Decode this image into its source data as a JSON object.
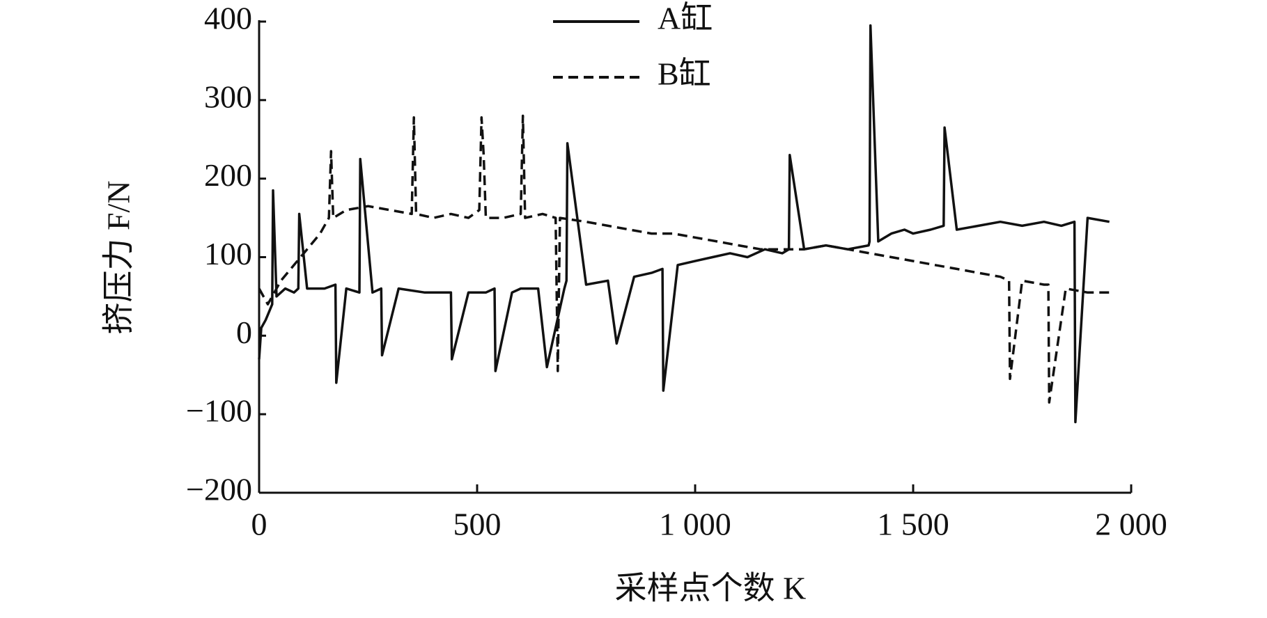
{
  "chart_data": {
    "type": "line",
    "xlabel": "采样点个数 K",
    "ylabel": "挤压力 F/N",
    "xlim": [
      0,
      2000
    ],
    "ylim": [
      -200,
      400
    ],
    "xticks": [
      0,
      500,
      {
        "value": 1000,
        "label": "1 000"
      },
      {
        "value": 1500,
        "label": "1 500"
      },
      {
        "value": 2000,
        "label": "2 000"
      }
    ],
    "yticks": [
      {
        "value": -200,
        "label": "−200"
      },
      {
        "value": -100,
        "label": "−100"
      },
      0,
      100,
      200,
      300,
      400
    ],
    "series": [
      {
        "name": "A缸",
        "color": "#111111",
        "dash": "solid",
        "x": [
          0,
          5,
          15,
          30,
          32,
          40,
          60,
          80,
          90,
          92,
          110,
          150,
          175,
          177,
          200,
          230,
          232,
          260,
          280,
          282,
          320,
          380,
          420,
          440,
          442,
          480,
          520,
          540,
          542,
          580,
          600,
          640,
          660,
          700,
          705,
          707,
          750,
          800,
          820,
          860,
          900,
          925,
          927,
          960,
          1000,
          1040,
          1080,
          1120,
          1160,
          1200,
          1215,
          1217,
          1250,
          1300,
          1350,
          1398,
          1400,
          1402,
          1420,
          1450,
          1480,
          1500,
          1540,
          1570,
          1572,
          1600,
          1650,
          1700,
          1750,
          1800,
          1840,
          1870,
          1872,
          1900,
          1950
        ],
        "values": [
          -30,
          10,
          20,
          40,
          185,
          50,
          60,
          55,
          60,
          155,
          60,
          60,
          65,
          -60,
          60,
          55,
          225,
          55,
          60,
          -25,
          60,
          55,
          55,
          55,
          -30,
          55,
          55,
          60,
          -45,
          55,
          60,
          60,
          -40,
          60,
          70,
          245,
          65,
          70,
          -10,
          75,
          80,
          85,
          -70,
          90,
          95,
          100,
          105,
          100,
          110,
          105,
          110,
          230,
          110,
          115,
          110,
          115,
          120,
          395,
          120,
          130,
          135,
          130,
          135,
          140,
          265,
          135,
          140,
          145,
          140,
          145,
          140,
          145,
          -110,
          150,
          145
        ]
      },
      {
        "name": "B缸",
        "color": "#111111",
        "dash": "dashed",
        "x": [
          0,
          20,
          50,
          80,
          110,
          140,
          160,
          165,
          170,
          200,
          250,
          300,
          350,
          355,
          360,
          400,
          440,
          480,
          505,
          510,
          515,
          520,
          560,
          600,
          605,
          610,
          650,
          680,
          685,
          690,
          750,
          800,
          850,
          900,
          950,
          1000,
          1050,
          1100,
          1150,
          1200,
          1250,
          1300,
          1350,
          1400,
          1450,
          1500,
          1550,
          1600,
          1650,
          1700,
          1720,
          1722,
          1750,
          1800,
          1810,
          1812,
          1850,
          1900,
          1950
        ],
        "values": [
          60,
          40,
          70,
          90,
          110,
          130,
          150,
          235,
          150,
          160,
          165,
          160,
          155,
          278,
          155,
          150,
          155,
          150,
          160,
          278,
          230,
          150,
          150,
          155,
          280,
          150,
          155,
          150,
          -45,
          150,
          145,
          140,
          135,
          130,
          130,
          125,
          120,
          115,
          110,
          110,
          110,
          115,
          110,
          105,
          100,
          95,
          90,
          85,
          80,
          75,
          70,
          -55,
          70,
          65,
          65,
          -85,
          60,
          55,
          55
        ]
      }
    ]
  }
}
